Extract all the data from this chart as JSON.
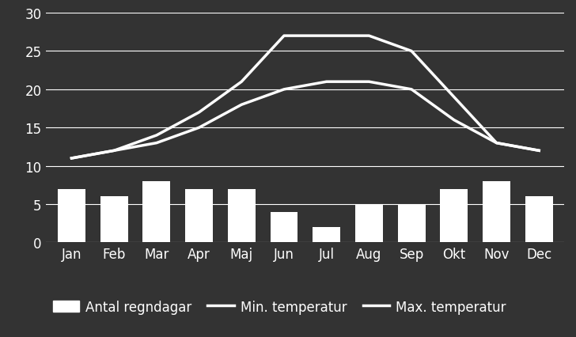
{
  "months": [
    "Jan",
    "Feb",
    "Mar",
    "Apr",
    "Maj",
    "Jun",
    "Jul",
    "Aug",
    "Sep",
    "Okt",
    "Nov",
    "Dec"
  ],
  "rain_days": [
    7,
    6,
    8,
    7,
    7,
    4,
    2,
    5,
    5,
    7,
    8,
    6
  ],
  "min_temp": [
    11,
    12,
    13,
    15,
    18,
    20,
    21,
    21,
    20,
    16,
    13,
    12
  ],
  "max_temp": [
    11,
    12,
    14,
    17,
    21,
    27,
    27,
    27,
    25,
    19,
    13,
    12
  ],
  "bar_color": "#ffffff",
  "line_color": "#ffffff",
  "background_color": "#333333",
  "text_color": "#ffffff",
  "grid_color": "#ffffff",
  "ylim": [
    0,
    30
  ],
  "yticks": [
    0,
    5,
    10,
    15,
    20,
    25,
    30
  ],
  "legend_labels": [
    "Antal regndagar",
    "Min. temperatur",
    "Max. temperatur"
  ],
  "line_width": 2.5,
  "bar_width": 0.65,
  "font_size": 12,
  "legend_font_size": 12
}
